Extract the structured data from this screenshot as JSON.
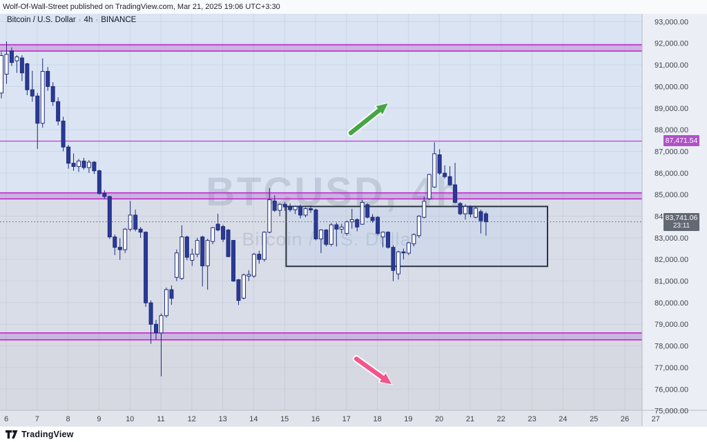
{
  "header": {
    "attribution": "Wolf-Of-Wall-Street published on TradingView.com, Mar 21, 2025 19:06 UTC+3:30"
  },
  "legend": {
    "symbol": "Bitcoin / U.S. Dollar",
    "separator": "·",
    "interval": "4h",
    "exchange": "BINANCE"
  },
  "watermark": {
    "line1": "BTCUSD, 4h",
    "line2": "Bitcoin / U.S. Dollar"
  },
  "footer": {
    "brand": "TradingView"
  },
  "price_axis": {
    "tick_labels": [
      "93,000.00",
      "92,000.00",
      "91,000.00",
      "90,000.00",
      "89,000.00",
      "88,000.00",
      "87,000.00",
      "86,000.00",
      "85,000.00",
      "84,000.00",
      "83,000.00",
      "82,000.00",
      "81,000.00",
      "80,000.00",
      "79,000.00",
      "78,000.00",
      "77,000.00",
      "76,000.00",
      "75,000.00"
    ],
    "alert_label": "87,471.54",
    "current_price_label": "83,741.06",
    "countdown": "23:11"
  },
  "time_axis": {
    "tick_labels": [
      "6",
      "7",
      "8",
      "9",
      "10",
      "11",
      "12",
      "13",
      "14",
      "15",
      "16",
      "17",
      "18",
      "19",
      "20",
      "21",
      "22",
      "23",
      "24",
      "25",
      "26",
      "27"
    ]
  },
  "colors": {
    "up_candle": "#ffffff",
    "down_candle": "#2b3a97",
    "candle_border": "#1d2b76",
    "level_line": "#c026cb",
    "level_fill": "rgba(171,71,188,0.30)",
    "alert_label_bg": "#b052c6",
    "current_label_bg": "#636973",
    "box_border": "#2a333e",
    "box_fill": "rgba(173,203,240,0.22)",
    "arrow_up": "#46a546",
    "arrow_down": "#f2558c",
    "zone_blue": "#dae4f3",
    "zone_mid": "#d9dde8",
    "zone_low": "#d6d9e1",
    "grid": "rgba(110,120,150,0.12)",
    "axis_text": "#3f434c",
    "axis_bg_right": "#ebeef5",
    "axis_bg_bottom": "#e1e4eb",
    "axis_border": "#b6bbc6",
    "dotted_line": "#555a64",
    "watermark": "rgba(140,152,172,0.33)"
  },
  "chart_data": {
    "type": "candlestick",
    "title": "BTCUSD, 4h",
    "symbol": "BTCUSD",
    "exchange": "BINANCE",
    "interval_hours": 4,
    "x_axis": {
      "unit": "day of March 2025",
      "day_labels": [
        6,
        7,
        8,
        9,
        10,
        11,
        12,
        13,
        14,
        15,
        16,
        17,
        18,
        19,
        20,
        21,
        22,
        23,
        24,
        25,
        26,
        27
      ],
      "first_candle": "2025-03-05 20:00",
      "last_candle": "2025-03-21 12:00"
    },
    "ylim": [
      75020,
      93300
    ],
    "grid": true,
    "current_price": 83741.06,
    "alert_price": 87471.54,
    "candles_ohlc": [
      [
        89700,
        91600,
        89450,
        91430
      ],
      [
        90570,
        92090,
        90130,
        91490
      ],
      [
        91650,
        91810,
        90950,
        91110
      ],
      [
        91190,
        91450,
        90630,
        91370
      ],
      [
        91320,
        91450,
        90250,
        90630
      ],
      [
        91050,
        91100,
        89600,
        89850
      ],
      [
        89850,
        90730,
        89300,
        89560
      ],
      [
        89560,
        89700,
        87110,
        88300
      ],
      [
        88300,
        91300,
        88100,
        90700
      ],
      [
        90700,
        90900,
        89800,
        90000
      ],
      [
        90000,
        90200,
        89100,
        89300
      ],
      [
        89300,
        89500,
        88200,
        88400
      ],
      [
        88400,
        88600,
        87000,
        87200
      ],
      [
        87200,
        87300,
        86200,
        86450
      ],
      [
        86450,
        86900,
        86100,
        86300
      ],
      [
        86300,
        86650,
        86050,
        86550
      ],
      [
        86550,
        86700,
        86150,
        86250
      ],
      [
        86250,
        86600,
        86000,
        86500
      ],
      [
        86500,
        86550,
        85950,
        86100
      ],
      [
        86100,
        86150,
        85000,
        85050
      ],
      [
        85050,
        85200,
        84800,
        84910
      ],
      [
        84910,
        84950,
        82950,
        83040
      ],
      [
        83040,
        83150,
        82200,
        82560
      ],
      [
        82560,
        82980,
        81980,
        82450
      ],
      [
        82450,
        83450,
        82300,
        83400
      ],
      [
        83400,
        84700,
        83300,
        84050
      ],
      [
        84050,
        84300,
        83300,
        83400
      ],
      [
        83400,
        83500,
        83000,
        83260
      ],
      [
        83260,
        83300,
        79800,
        79990
      ],
      [
        79990,
        80100,
        78100,
        79000
      ],
      [
        79000,
        79200,
        78300,
        78600
      ],
      [
        78600,
        79500,
        76590,
        79400
      ],
      [
        79400,
        80700,
        79300,
        80600
      ],
      [
        80600,
        80800,
        79900,
        80200
      ],
      [
        81170,
        82460,
        81000,
        82300
      ],
      [
        81120,
        83580,
        81050,
        83040
      ],
      [
        83040,
        83100,
        81960,
        82100
      ],
      [
        81960,
        82500,
        81700,
        82240
      ],
      [
        82240,
        83000,
        82100,
        82880
      ],
      [
        83040,
        83100,
        80750,
        81700
      ],
      [
        81700,
        82950,
        80600,
        82880
      ],
      [
        82830,
        83500,
        82700,
        83470
      ],
      [
        83630,
        84110,
        83300,
        83360
      ],
      [
        83520,
        83600,
        82800,
        82930
      ],
      [
        83360,
        83400,
        82100,
        82130
      ],
      [
        82880,
        82900,
        80960,
        81000
      ],
      [
        81060,
        81100,
        79890,
        80100
      ],
      [
        80210,
        81350,
        80150,
        81280
      ],
      [
        81230,
        81500,
        81000,
        81300
      ],
      [
        81230,
        82300,
        81150,
        82240
      ],
      [
        82240,
        82400,
        81800,
        82000
      ],
      [
        82000,
        83300,
        81900,
        83260
      ],
      [
        83260,
        85300,
        83200,
        84760
      ],
      [
        84700,
        84970,
        84200,
        84270
      ],
      [
        84270,
        84600,
        84000,
        84550
      ],
      [
        84550,
        84650,
        84250,
        84430
      ],
      [
        84430,
        84600,
        84200,
        84300
      ],
      [
        84300,
        84500,
        84100,
        84450
      ],
      [
        84450,
        84550,
        83900,
        84050
      ],
      [
        84050,
        84400,
        83950,
        84350
      ],
      [
        84350,
        84500,
        84150,
        84290
      ],
      [
        84290,
        84350,
        82880,
        82950
      ],
      [
        82950,
        83400,
        82290,
        83360
      ],
      [
        83360,
        83400,
        82610,
        82700
      ],
      [
        82700,
        83680,
        82600,
        83600
      ],
      [
        83600,
        83700,
        82600,
        83400
      ],
      [
        83400,
        83650,
        83200,
        83500
      ],
      [
        83200,
        83800,
        83100,
        83740
      ],
      [
        83740,
        84340,
        83420,
        83840
      ],
      [
        83840,
        83900,
        83300,
        83500
      ],
      [
        83630,
        84750,
        83600,
        84640
      ],
      [
        84530,
        84600,
        83900,
        83950
      ],
      [
        83950,
        84100,
        83700,
        83800
      ],
      [
        83950,
        84000,
        83100,
        83200
      ],
      [
        83040,
        83300,
        82560,
        83260
      ],
      [
        83260,
        83300,
        82500,
        82560
      ],
      [
        82560,
        82650,
        81000,
        81490
      ],
      [
        81330,
        82400,
        81070,
        82350
      ],
      [
        82350,
        82500,
        82000,
        82300
      ],
      [
        82290,
        82800,
        82200,
        82770
      ],
      [
        82720,
        83200,
        82600,
        83150
      ],
      [
        83100,
        84050,
        83000,
        84000
      ],
      [
        83950,
        84900,
        83900,
        84690
      ],
      [
        84810,
        85960,
        84750,
        85930
      ],
      [
        85350,
        87420,
        85300,
        86890
      ],
      [
        86840,
        87100,
        85900,
        85990
      ],
      [
        85990,
        86350,
        85750,
        85830
      ],
      [
        85830,
        86310,
        85400,
        85450
      ],
      [
        85450,
        86470,
        84600,
        84640
      ],
      [
        84590,
        84650,
        84050,
        84110
      ],
      [
        84110,
        84550,
        83840,
        84450
      ],
      [
        84450,
        84500,
        83950,
        84100
      ],
      [
        83950,
        84450,
        83900,
        84370
      ],
      [
        84210,
        84300,
        83200,
        83790
      ],
      [
        84110,
        84200,
        83100,
        83741
      ]
    ],
    "levels": [
      {
        "type": "band",
        "price_top": 91930,
        "price_bottom": 91640
      },
      {
        "type": "line",
        "price": 87471.54,
        "label": "87,471.54"
      },
      {
        "type": "band",
        "price_top": 85080,
        "price_bottom": 84800
      },
      {
        "type": "band",
        "price_top": 78600,
        "price_bottom": 78280
      }
    ],
    "zones": [
      {
        "price_from": 93300,
        "price_to": 85080,
        "color_key": "zone_blue"
      },
      {
        "price_from": 84800,
        "price_to": 78600,
        "color_key": "zone_mid"
      },
      {
        "price_from": 78280,
        "price_to": 75020,
        "color_key": "zone_low"
      }
    ],
    "rectangle": {
      "day_start": 15.05,
      "day_end": 23.5,
      "price_top": 84450,
      "price_bottom": 81680
    },
    "arrows": [
      {
        "direction": "up",
        "from": {
          "day": 17.14,
          "price": 87850
        },
        "to": {
          "day": 18.34,
          "price": 89220
        },
        "color_key": "arrow_up"
      },
      {
        "direction": "down",
        "from": {
          "day": 17.32,
          "price": 77400
        },
        "to": {
          "day": 18.46,
          "price": 76230
        },
        "color_key": "arrow_down"
      }
    ]
  }
}
